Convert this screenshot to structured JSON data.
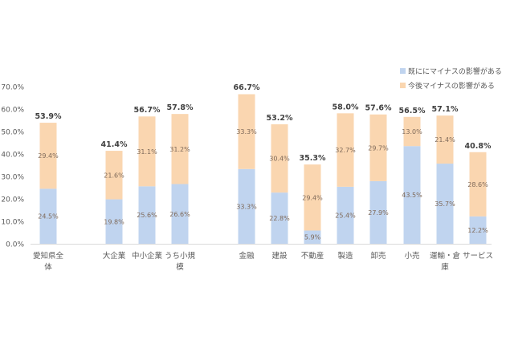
{
  "chart_data": {
    "type": "bar",
    "stacked": true,
    "categories": [
      "愛知県全体",
      "大企業",
      "中小企業",
      "うち小規模",
      "金融",
      "建設",
      "不動産",
      "製造",
      "卸売",
      "小売",
      "運輸・倉庫",
      "サービス"
    ],
    "category_label_lines": [
      [
        "愛知県全",
        "体"
      ],
      [
        "大企業"
      ],
      [
        "中小企業"
      ],
      [
        "うち小規",
        "模"
      ],
      [
        "金融"
      ],
      [
        "建設"
      ],
      [
        "不動産"
      ],
      [
        "製造"
      ],
      [
        "卸売"
      ],
      [
        "小売"
      ],
      [
        "運輸・倉",
        "庫"
      ],
      [
        "サービス"
      ]
    ],
    "series": [
      {
        "name": "既ににマイナスの影響がある",
        "color": "#c0d4ef",
        "values": [
          24.5,
          19.8,
          25.6,
          26.6,
          33.3,
          22.8,
          5.9,
          25.4,
          27.9,
          43.5,
          35.7,
          12.2
        ],
        "labels": [
          "24.5%",
          "19.8%",
          "25.6%",
          "26.6%",
          "33.3%",
          "22.8%",
          "5.9%",
          "25.4%",
          "27.9%",
          "43.5%",
          "35.7%",
          "12.2%"
        ]
      },
      {
        "name": "今後マイナスの影響がある",
        "color": "#fad6b0",
        "values": [
          29.4,
          21.6,
          31.1,
          31.2,
          33.3,
          30.4,
          29.4,
          32.7,
          29.7,
          13.0,
          21.4,
          28.6
        ],
        "labels": [
          "29.4%",
          "21.6%",
          "31.1%",
          "31.2%",
          "33.3%",
          "30.4%",
          "29.4%",
          "32.7%",
          "29.7%",
          "13.0%",
          "21.4%",
          "28.6%"
        ]
      }
    ],
    "totals": [
      53.9,
      41.4,
      56.7,
      57.8,
      66.7,
      53.2,
      35.3,
      58.0,
      57.6,
      56.5,
      57.1,
      40.8
    ],
    "total_labels": [
      "53.9%",
      "41.4%",
      "56.7%",
      "57.8%",
      "66.7%",
      "53.2%",
      "35.3%",
      "58.0%",
      "57.6%",
      "56.5%",
      "57.1%",
      "40.8%"
    ],
    "ylim": [
      0,
      70
    ],
    "yticks": [
      0,
      10,
      20,
      30,
      40,
      50,
      60,
      70
    ],
    "ytick_labels": [
      "0.0%",
      "10.0%",
      "20.0%",
      "30.0%",
      "40.0%",
      "50.0%",
      "60.0%",
      "70.0%"
    ],
    "title": "",
    "xlabel": "",
    "ylabel": "",
    "grid": false,
    "legend_position": "top-right",
    "colors": {
      "axis": "#d9d9d9",
      "tick_text": "#595959",
      "segment_text": "#7f6a5a",
      "total_text": "#404040"
    }
  }
}
